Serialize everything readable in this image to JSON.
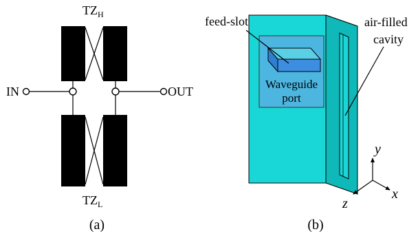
{
  "panel_a": {
    "tz_high": {
      "main": "TZ",
      "sub": "H"
    },
    "tz_low": {
      "main": "TZ",
      "sub": "L"
    },
    "input_label": "IN",
    "output_label": "OUT",
    "caption": "(a)"
  },
  "panel_b": {
    "feed_slot_label": "feed-slot",
    "cavity_label_line1": "air-filled",
    "cavity_label_line2": "cavity",
    "port_label_line1": "Waveguide",
    "port_label_line2": "port",
    "axis_x": "x",
    "axis_y": "y",
    "axis_z": "z",
    "caption": "(b)"
  },
  "colors": {
    "resonator_block": "#000000",
    "box_face": "#1ad7d7",
    "box_side": "#10b9b9",
    "box_top": "#4fe6e6",
    "port_fill": "#6fa0e6"
  }
}
